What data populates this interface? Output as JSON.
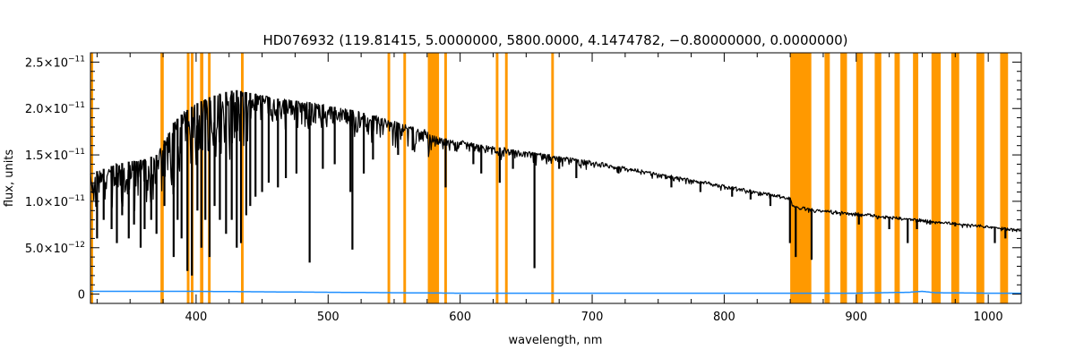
{
  "chart_data": {
    "type": "line",
    "title": "HD076932   (119.81415, 5.0000000, 5800.0000, 4.1474782, −0.80000000, 0.0000000)",
    "xlabel": "wavelength, nm",
    "ylabel": "flux, units",
    "xlim": [
      320,
      1025
    ],
    "ylim": [
      -1e-12,
      2.6e-11
    ],
    "x_ticks": [
      400,
      500,
      600,
      700,
      800,
      900,
      1000
    ],
    "x_tick_labels": [
      "400",
      "500",
      "600",
      "700",
      "800",
      "900",
      "1000"
    ],
    "y_ticks": [
      0,
      5e-12,
      1e-11,
      1.5e-11,
      2e-11,
      2.5e-11
    ],
    "y_tick_labels": [
      {
        "mant": "0",
        "exp": ""
      },
      {
        "mant": "5.0×10",
        "exp": "−12"
      },
      {
        "mant": "1.0×10",
        "exp": "−11"
      },
      {
        "mant": "1.5×10",
        "exp": "−11"
      },
      {
        "mant": "2.0×10",
        "exp": "−11"
      },
      {
        "mant": "2.5×10",
        "exp": "−11"
      }
    ],
    "grid": false,
    "colors": {
      "flux": "#000000",
      "error": "#1f8fff",
      "mask": "#ff9900",
      "axis": "#000000"
    },
    "masked_regions": [
      [
        320,
        322
      ],
      [
        373,
        375.5
      ],
      [
        393,
        395
      ],
      [
        396,
        398
      ],
      [
        403,
        405.5
      ],
      [
        409,
        411
      ],
      [
        434,
        436
      ],
      [
        545,
        547
      ],
      [
        557,
        559
      ],
      [
        575.5,
        584
      ],
      [
        588,
        590
      ],
      [
        627,
        629
      ],
      [
        634,
        636
      ],
      [
        669,
        671
      ],
      [
        850,
        866
      ],
      [
        876,
        880
      ],
      [
        888,
        893
      ],
      [
        900,
        905
      ],
      [
        914,
        919
      ],
      [
        929,
        933
      ],
      [
        943,
        947
      ],
      [
        957,
        964
      ],
      [
        972,
        978
      ],
      [
        991,
        997
      ],
      [
        1009,
        1015
      ]
    ],
    "series": [
      {
        "name": "flux",
        "x": [
          320,
          330,
          340,
          350,
          360,
          370,
          375,
          380,
          390,
          400,
          410,
          420,
          430,
          440,
          450,
          460,
          470,
          480,
          490,
          500,
          520,
          540,
          560,
          575,
          580,
          600,
          620,
          650,
          700,
          750,
          800,
          850,
          852,
          860,
          866,
          880,
          900,
          950,
          1000,
          1025
        ],
        "y": [
          1.3e-11,
          1.35e-11,
          1.4e-11,
          1.43e-11,
          1.45e-11,
          1.5e-11,
          1.62e-11,
          1.8e-11,
          1.95e-11,
          2.05e-11,
          2.12e-11,
          2.17e-11,
          2.2e-11,
          2.17e-11,
          2.14e-11,
          2.11e-11,
          2.09e-11,
          2.08e-11,
          2.06e-11,
          2.03e-11,
          1.98e-11,
          1.9e-11,
          1.82e-11,
          1.76e-11,
          1.7e-11,
          1.65e-11,
          1.6e-11,
          1.54e-11,
          1.43e-11,
          1.3e-11,
          1.17e-11,
          1.04e-11,
          9.5e-12,
          9.3e-12,
          9.2e-12,
          9e-12,
          8.7e-12,
          8e-12,
          7.3e-12,
          6.9e-12
        ]
      },
      {
        "name": "error",
        "x": [
          320,
          400,
          500,
          600,
          700,
          800,
          900,
          940,
          950,
          960,
          1000,
          1025
        ],
        "y": [
          3e-13,
          3e-13,
          2e-13,
          1e-13,
          1e-13,
          1e-13,
          1e-13,
          2e-13,
          3e-13,
          1.5e-13,
          1e-13,
          1e-13
        ]
      }
    ],
    "absorption_lines": [
      {
        "x": 325,
        "y": 6e-12
      },
      {
        "x": 330,
        "y": 8e-12
      },
      {
        "x": 336,
        "y": 7e-12
      },
      {
        "x": 340,
        "y": 5.5e-12
      },
      {
        "x": 344,
        "y": 8.5e-12
      },
      {
        "x": 349,
        "y": 6e-12
      },
      {
        "x": 353,
        "y": 7.5e-12
      },
      {
        "x": 358,
        "y": 5e-12
      },
      {
        "x": 361,
        "y": 7e-12
      },
      {
        "x": 366,
        "y": 8e-12
      },
      {
        "x": 370,
        "y": 6.5e-12
      },
      {
        "x": 376,
        "y": 9.5e-12
      },
      {
        "x": 383,
        "y": 4e-12
      },
      {
        "x": 386,
        "y": 8e-12
      },
      {
        "x": 389,
        "y": 6e-12
      },
      {
        "x": 393.4,
        "y": 2.5e-12
      },
      {
        "x": 396.8,
        "y": 2e-12
      },
      {
        "x": 401,
        "y": 9e-12
      },
      {
        "x": 404,
        "y": 5e-12
      },
      {
        "x": 407,
        "y": 8e-12
      },
      {
        "x": 410.2,
        "y": 4e-12
      },
      {
        "x": 414,
        "y": 9.5e-12
      },
      {
        "x": 418,
        "y": 8e-12
      },
      {
        "x": 422.7,
        "y": 6.5e-12
      },
      {
        "x": 427,
        "y": 8e-12
      },
      {
        "x": 430.8,
        "y": 5e-12
      },
      {
        "x": 434,
        "y": 5.5e-12
      },
      {
        "x": 438,
        "y": 8.5e-12
      },
      {
        "x": 441,
        "y": 9.5e-12
      },
      {
        "x": 445,
        "y": 1.05e-11
      },
      {
        "x": 450,
        "y": 1.1e-11
      },
      {
        "x": 455,
        "y": 1.2e-11
      },
      {
        "x": 462,
        "y": 1.15e-11
      },
      {
        "x": 468,
        "y": 1.25e-11
      },
      {
        "x": 476,
        "y": 1.3e-11
      },
      {
        "x": 486,
        "y": 3.4e-12
      },
      {
        "x": 496,
        "y": 1.35e-11
      },
      {
        "x": 505,
        "y": 1.4e-11
      },
      {
        "x": 516.9,
        "y": 1.1e-11
      },
      {
        "x": 518.4,
        "y": 4.8e-12
      },
      {
        "x": 527,
        "y": 1.3e-11
      },
      {
        "x": 534,
        "y": 1.45e-11
      },
      {
        "x": 553,
        "y": 1.5e-11
      },
      {
        "x": 564,
        "y": 1.55e-11
      },
      {
        "x": 589,
        "y": 1.15e-11
      },
      {
        "x": 610,
        "y": 1.4e-11
      },
      {
        "x": 616,
        "y": 1.3e-11
      },
      {
        "x": 630,
        "y": 1.2e-11
      },
      {
        "x": 640,
        "y": 1.35e-11
      },
      {
        "x": 656.3,
        "y": 2.8e-12
      },
      {
        "x": 675,
        "y": 1.35e-11
      },
      {
        "x": 688,
        "y": 1.25e-11
      },
      {
        "x": 720,
        "y": 1.3e-11
      },
      {
        "x": 760,
        "y": 1.15e-11
      },
      {
        "x": 782,
        "y": 1.1e-11
      },
      {
        "x": 806,
        "y": 1.05e-11
      },
      {
        "x": 820,
        "y": 1.02e-11
      },
      {
        "x": 835,
        "y": 9.5e-12
      },
      {
        "x": 849.8,
        "y": 5.5e-12
      },
      {
        "x": 854.2,
        "y": 4e-12
      },
      {
        "x": 866.2,
        "y": 3.7e-12
      },
      {
        "x": 902,
        "y": 7.5e-12
      },
      {
        "x": 925,
        "y": 7e-12
      },
      {
        "x": 939,
        "y": 5.5e-12
      },
      {
        "x": 946,
        "y": 7e-12
      },
      {
        "x": 956,
        "y": 7.5e-12
      },
      {
        "x": 975,
        "y": 7.3e-12
      },
      {
        "x": 1005,
        "y": 5.5e-12
      },
      {
        "x": 1013,
        "y": 6e-12
      }
    ]
  }
}
